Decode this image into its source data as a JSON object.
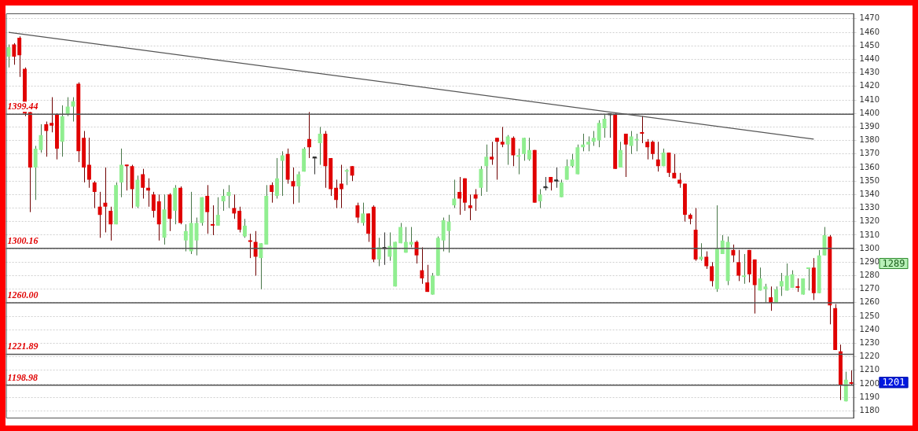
{
  "chart_data": {
    "type": "candlestick",
    "categories": [
      null,
      null,
      null,
      null,
      null,
      null,
      null,
      null,
      null,
      null,
      null,
      null,
      null,
      null,
      null,
      null,
      null,
      null,
      null,
      null,
      null,
      null,
      null,
      null,
      null,
      null,
      null,
      null,
      null,
      null,
      null,
      null,
      null,
      null,
      null,
      null,
      null,
      null,
      null,
      null,
      null,
      null,
      null,
      null,
      null,
      null,
      null,
      null,
      null,
      null,
      null,
      null,
      null,
      null,
      null,
      null,
      null,
      null,
      null,
      null,
      null,
      null,
      null,
      null,
      null,
      null,
      null,
      null,
      null,
      null,
      null,
      null,
      null,
      null,
      null,
      null,
      null,
      null,
      null,
      null,
      null,
      null,
      null,
      null,
      null,
      null,
      null,
      null,
      null,
      null,
      null,
      null,
      null,
      null,
      null,
      null,
      null,
      null,
      null,
      null,
      null,
      null,
      null,
      null,
      null,
      null,
      null,
      null,
      null,
      null,
      null,
      null,
      null,
      null,
      null,
      null,
      null,
      null,
      null,
      null,
      null,
      null,
      null,
      null,
      null,
      null,
      null,
      null,
      null,
      null,
      null,
      null,
      null,
      null,
      null,
      null,
      null,
      null,
      null,
      null,
      null,
      null,
      null,
      null,
      null,
      null,
      null,
      null,
      null,
      null,
      null,
      null,
      null,
      null,
      null,
      null,
      null,
      null
    ],
    "ohlc": [
      [
        1442,
        1451,
        1434,
        1449
      ],
      [
        1451,
        1452,
        1436,
        1442
      ],
      [
        1456,
        1457,
        1427,
        1443
      ],
      [
        1433,
        1434,
        1398,
        1400
      ],
      [
        1401,
        1402,
        1327,
        1360
      ],
      [
        1360,
        1376,
        1336,
        1374
      ],
      [
        1373,
        1392,
        1371,
        1384
      ],
      [
        1392,
        1394,
        1368,
        1387
      ],
      [
        1393,
        1412,
        1386,
        1391
      ],
      [
        1399,
        1400,
        1366,
        1374
      ],
      [
        1379,
        1406,
        1368,
        1398
      ],
      [
        1399,
        1412,
        1398,
        1405
      ],
      [
        1405,
        1412,
        1394,
        1409
      ],
      [
        1422,
        1423,
        1364,
        1372
      ],
      [
        1382,
        1387,
        1349,
        1360
      ],
      [
        1362,
        1382,
        1345,
        1351
      ],
      [
        1349,
        1350,
        1330,
        1342
      ],
      [
        1331,
        1342,
        1308,
        1325
      ],
      [
        1334,
        1360,
        1312,
        1331
      ],
      [
        1328,
        1331,
        1306,
        1318
      ],
      [
        1318,
        1349,
        1318,
        1347
      ],
      [
        1349,
        1374,
        1338,
        1362
      ],
      [
        1362,
        1362,
        1343,
        1361
      ],
      [
        1361,
        1362,
        1330,
        1344
      ],
      [
        1331,
        1354,
        1330,
        1351
      ],
      [
        1355,
        1359,
        1337,
        1345
      ],
      [
        1345,
        1352,
        1331,
        1343
      ],
      [
        1340,
        1342,
        1323,
        1328
      ],
      [
        1335,
        1340,
        1306,
        1318
      ],
      [
        1308,
        1340,
        1303,
        1329
      ],
      [
        1340,
        1341,
        1313,
        1322
      ],
      [
        1328,
        1347,
        1318,
        1345
      ],
      [
        1345,
        1346,
        1318,
        1319
      ],
      [
        1306,
        1318,
        1298,
        1313
      ],
      [
        1298,
        1342,
        1296,
        1319
      ],
      [
        1306,
        1323,
        1295,
        1319
      ],
      [
        1319,
        1338,
        1317,
        1338
      ],
      [
        1339,
        1347,
        1311,
        1327
      ],
      [
        1318,
        1332,
        1310,
        1317
      ],
      [
        1317,
        1338,
        1317,
        1325
      ],
      [
        1335,
        1344,
        1328,
        1339
      ],
      [
        1339,
        1347,
        1330,
        1342
      ],
      [
        1330,
        1340,
        1322,
        1326
      ],
      [
        1328,
        1331,
        1312,
        1314
      ],
      [
        1309,
        1322,
        1308,
        1317
      ],
      [
        1306,
        1311,
        1293,
        1305
      ],
      [
        1305,
        1313,
        1280,
        1294
      ],
      [
        1293,
        1304,
        1270,
        1304
      ],
      [
        1303,
        1347,
        1303,
        1339
      ],
      [
        1347,
        1349,
        1334,
        1342
      ],
      [
        1339,
        1367,
        1337,
        1352
      ],
      [
        1365,
        1372,
        1339,
        1369
      ],
      [
        1370,
        1374,
        1348,
        1351
      ],
      [
        1350,
        1360,
        1333,
        1346
      ],
      [
        1346,
        1357,
        1334,
        1355
      ],
      [
        1357,
        1375,
        1357,
        1374
      ],
      [
        1381,
        1401,
        1367,
        1375
      ],
      [
        1367,
        1368,
        1355,
        1367
      ],
      [
        1378,
        1390,
        1362,
        1385
      ],
      [
        1385,
        1387,
        1345,
        1361
      ],
      [
        1367,
        1367,
        1339,
        1344
      ],
      [
        1345,
        1351,
        1330,
        1336
      ],
      [
        1348,
        1362,
        1330,
        1344
      ],
      [
        1357,
        1359,
        1347,
        1358
      ],
      [
        1361,
        1361,
        1350,
        1354
      ],
      [
        1332,
        1334,
        1319,
        1323
      ],
      [
        1319,
        1334,
        1317,
        1326
      ],
      [
        1326,
        1326,
        1305,
        1311
      ],
      [
        1331,
        1332,
        1290,
        1292
      ],
      [
        1292,
        1308,
        1287,
        1301
      ],
      [
        1300,
        1312,
        1288,
        1300
      ],
      [
        1294,
        1312,
        1291,
        1302
      ],
      [
        1272,
        1305,
        1272,
        1305
      ],
      [
        1304,
        1319,
        1304,
        1316
      ],
      [
        1297,
        1316,
        1297,
        1305
      ],
      [
        1303,
        1316,
        1301,
        1305
      ],
      [
        1305,
        1306,
        1289,
        1295
      ],
      [
        1284,
        1301,
        1274,
        1278
      ],
      [
        1275,
        1288,
        1268,
        1268
      ],
      [
        1266,
        1282,
        1266,
        1280
      ],
      [
        1280,
        1309,
        1280,
        1308
      ],
      [
        1306,
        1323,
        1298,
        1321
      ],
      [
        1313,
        1325,
        1297,
        1320
      ],
      [
        1332,
        1351,
        1330,
        1337
      ],
      [
        1342,
        1353,
        1325,
        1337
      ],
      [
        1352,
        1352,
        1328,
        1334
      ],
      [
        1332,
        1340,
        1321,
        1330
      ],
      [
        1340,
        1344,
        1328,
        1337
      ],
      [
        1345,
        1361,
        1339,
        1359
      ],
      [
        1361,
        1377,
        1342,
        1368
      ],
      [
        1368,
        1379,
        1362,
        1366
      ],
      [
        1382,
        1382,
        1351,
        1379
      ],
      [
        1379,
        1390,
        1375,
        1377
      ],
      [
        1377,
        1384,
        1362,
        1383
      ],
      [
        1382,
        1383,
        1361,
        1369
      ],
      [
        1368,
        1374,
        1355,
        1369
      ],
      [
        1370,
        1382,
        1365,
        1382
      ],
      [
        1366,
        1382,
        1365,
        1373
      ],
      [
        1373,
        1373,
        1334,
        1334
      ],
      [
        1335,
        1344,
        1330,
        1340
      ],
      [
        1345,
        1353,
        1343,
        1345
      ],
      [
        1353,
        1353,
        1343,
        1349
      ],
      [
        1350,
        1360,
        1345,
        1350
      ],
      [
        1338,
        1351,
        1338,
        1349
      ],
      [
        1351,
        1366,
        1351,
        1361
      ],
      [
        1361,
        1370,
        1360,
        1366
      ],
      [
        1355,
        1377,
        1355,
        1375
      ],
      [
        1375,
        1385,
        1372,
        1377
      ],
      [
        1377,
        1383,
        1372,
        1379
      ],
      [
        1379,
        1387,
        1376,
        1382
      ],
      [
        1380,
        1395,
        1375,
        1393
      ],
      [
        1389,
        1399,
        1382,
        1396
      ],
      [
        1399,
        1399,
        1382,
        1399
      ],
      [
        1399,
        1400,
        1359,
        1359
      ],
      [
        1360,
        1379,
        1360,
        1373
      ],
      [
        1385,
        1385,
        1353,
        1377
      ],
      [
        1376,
        1387,
        1370,
        1383
      ],
      [
        1380,
        1385,
        1372,
        1381
      ],
      [
        1386,
        1398,
        1378,
        1385
      ],
      [
        1379,
        1381,
        1366,
        1375
      ],
      [
        1379,
        1380,
        1366,
        1370
      ],
      [
        1366,
        1379,
        1357,
        1361
      ],
      [
        1361,
        1374,
        1361,
        1371
      ],
      [
        1371,
        1371,
        1353,
        1356
      ],
      [
        1356,
        1370,
        1352,
        1352
      ],
      [
        1351,
        1356,
        1345,
        1348
      ],
      [
        1348,
        1348,
        1320,
        1325
      ],
      [
        1325,
        1326,
        1318,
        1322
      ],
      [
        1314,
        1330,
        1291,
        1292
      ],
      [
        1292,
        1304,
        1291,
        1294
      ],
      [
        1294,
        1298,
        1285,
        1287
      ],
      [
        1287,
        1290,
        1272,
        1276
      ],
      [
        1270,
        1332,
        1268,
        1300
      ],
      [
        1296,
        1310,
        1296,
        1306
      ],
      [
        1276,
        1309,
        1273,
        1305
      ],
      [
        1299,
        1303,
        1290,
        1295
      ],
      [
        1290,
        1299,
        1276,
        1280
      ],
      [
        1279,
        1296,
        1274,
        1280
      ],
      [
        1299,
        1299,
        1275,
        1281
      ],
      [
        1292,
        1292,
        1252,
        1273
      ],
      [
        1269,
        1286,
        1269,
        1278
      ],
      [
        1270,
        1274,
        1260,
        1272
      ],
      [
        1264,
        1272,
        1254,
        1260
      ],
      [
        1260,
        1272,
        1260,
        1270
      ],
      [
        1272,
        1282,
        1265,
        1276
      ],
      [
        1269,
        1289,
        1269,
        1280
      ],
      [
        1271,
        1284,
        1271,
        1281
      ],
      [
        1272,
        1278,
        1268,
        1271
      ],
      [
        1266,
        1278,
        1266,
        1278
      ],
      [
        1285,
        1286,
        1269,
        1286
      ],
      [
        1286,
        1293,
        1262,
        1267
      ],
      [
        1267,
        1299,
        1267,
        1295
      ],
      [
        1295,
        1316,
        1295,
        1310
      ],
      [
        1309,
        1310,
        1244,
        1258
      ],
      [
        1256,
        1259,
        1225,
        1225
      ],
      [
        1224,
        1229,
        1188,
        1199
      ],
      [
        1187,
        1209,
        1187,
        1203
      ],
      [
        1201,
        1210,
        1199,
        1200
      ]
    ],
    "colors": [
      "#90ee90",
      "#e00000",
      "#e00000",
      "#e00000",
      "#e00000",
      "#90ee90",
      "#90ee90",
      "#e00000",
      "#e00000",
      "#e00000",
      "#90ee90",
      "#90ee90",
      "#90ee90",
      "#e00000",
      "#e00000",
      "#e00000",
      "#e00000",
      "#e00000",
      "#e00000",
      "#e00000",
      "#90ee90",
      "#90ee90",
      "#e00000",
      "#e00000",
      "#90ee90",
      "#e00000",
      "#e00000",
      "#e00000",
      "#e00000",
      "#90ee90",
      "#e00000",
      "#90ee90",
      "#e00000",
      "#90ee90",
      "#90ee90",
      "#90ee90",
      "#90ee90",
      "#e00000",
      "#e00000",
      "#90ee90",
      "#90ee90",
      "#90ee90",
      "#e00000",
      "#e00000",
      "#90ee90",
      "#e00000",
      "#e00000",
      "#90ee90",
      "#90ee90",
      "#e00000",
      "#90ee90",
      "#90ee90",
      "#e00000",
      "#e00000",
      "#90ee90",
      "#90ee90",
      "#e00000",
      "#333333",
      "#90ee90",
      "#e00000",
      "#e00000",
      "#e00000",
      "#e00000",
      "#90ee90",
      "#e00000",
      "#e00000",
      "#90ee90",
      "#e00000",
      "#e00000",
      "#90ee90",
      "#333333",
      "#90ee90",
      "#90ee90",
      "#90ee90",
      "#90ee90",
      "#90ee90",
      "#e00000",
      "#e00000",
      "#e00000",
      "#90ee90",
      "#90ee90",
      "#90ee90",
      "#90ee90",
      "#90ee90",
      "#e00000",
      "#e00000",
      "#e00000",
      "#e00000",
      "#90ee90",
      "#90ee90",
      "#e00000",
      "#e00000",
      "#e00000",
      "#90ee90",
      "#e00000",
      "#90ee90",
      "#90ee90",
      "#90ee90",
      "#e00000",
      "#90ee90",
      "#333333",
      "#e00000",
      "#333333",
      "#90ee90",
      "#90ee90",
      "#90ee90",
      "#90ee90",
      "#90ee90",
      "#90ee90",
      "#90ee90",
      "#90ee90",
      "#90ee90",
      "#333333",
      "#e00000",
      "#90ee90",
      "#e00000",
      "#90ee90",
      "#90ee90",
      "#e00000",
      "#e00000",
      "#e00000",
      "#e00000",
      "#90ee90",
      "#e00000",
      "#e00000",
      "#e00000",
      "#e00000",
      "#e00000",
      "#e00000",
      "#90ee90",
      "#e00000",
      "#e00000",
      "#90ee90",
      "#90ee90",
      "#90ee90",
      "#e00000",
      "#e00000",
      "#90ee90",
      "#e00000",
      "#e00000",
      "#90ee90",
      "#90ee90",
      "#e00000",
      "#90ee90",
      "#90ee90",
      "#90ee90",
      "#90ee90",
      "#e00000",
      "#90ee90",
      "#90ee90",
      "#e00000",
      "#90ee90",
      "#90ee90",
      "#e00000",
      "#e00000",
      "#e00000",
      "#90ee90",
      "#e00000"
    ],
    "series": [
      {
        "type": "line",
        "color": "#555555",
        "values": [
          1460,
          null,
          null,
          null,
          null,
          null,
          null,
          null,
          null,
          null,
          null,
          null,
          null,
          null,
          null,
          null,
          null,
          null,
          null,
          null,
          null,
          null,
          null,
          null,
          null,
          null,
          null,
          null,
          null,
          null,
          null,
          null,
          null,
          null,
          null,
          null,
          null,
          null,
          null,
          null,
          null,
          null,
          null,
          null,
          null,
          null,
          null,
          null,
          null,
          null,
          null,
          null,
          null,
          null,
          null,
          null,
          null,
          null,
          null,
          null,
          null,
          null,
          null,
          null,
          null,
          null,
          null,
          null,
          null,
          null,
          null,
          null,
          null,
          null,
          null,
          null,
          null,
          null,
          null,
          null,
          null,
          null,
          null,
          null,
          null,
          null,
          null,
          null,
          null,
          null,
          null,
          null,
          null,
          null,
          null,
          null,
          null,
          null,
          null,
          null,
          null,
          null,
          null,
          null,
          null,
          null,
          null,
          null,
          null,
          null,
          null,
          null,
          null,
          null,
          null,
          null,
          null,
          null,
          null,
          null,
          null,
          null,
          null,
          null,
          null,
          null,
          null,
          null,
          null,
          null,
          null,
          null,
          null,
          null,
          null,
          null,
          null,
          null,
          null,
          null,
          null,
          null,
          null,
          null,
          null,
          null,
          null,
          null,
          null,
          null,
          1381,
          null,
          null,
          null,
          null,
          null,
          null,
          null
        ]
      }
    ],
    "ylim": [
      1175,
      1474
    ],
    "yticks": [
      1180,
      1190,
      1200,
      1210,
      1220,
      1230,
      1240,
      1250,
      1260,
      1270,
      1280,
      1290,
      1300,
      1310,
      1320,
      1330,
      1340,
      1350,
      1360,
      1370,
      1380,
      1390,
      1400,
      1410,
      1420,
      1430,
      1440,
      1450,
      1460,
      1470
    ],
    "grid": "y",
    "tick_labels": "y",
    "ref_lines": [
      {
        "axis": "y",
        "value": 1399.44,
        "label": "1399.44",
        "color": "#555555"
      },
      {
        "axis": "y",
        "value": 1300.16,
        "label": "1300.16",
        "color": "#555555"
      },
      {
        "axis": "y",
        "value": 1260.0,
        "label": "1260.00",
        "color": "#555555"
      },
      {
        "axis": "y",
        "value": 1221.89,
        "label": "1221.89",
        "color": "#555555"
      },
      {
        "axis": "y",
        "value": 1198.98,
        "label": "1198.98",
        "color": "#555555"
      }
    ],
    "annotations": [
      "1289",
      "1201"
    ]
  }
}
